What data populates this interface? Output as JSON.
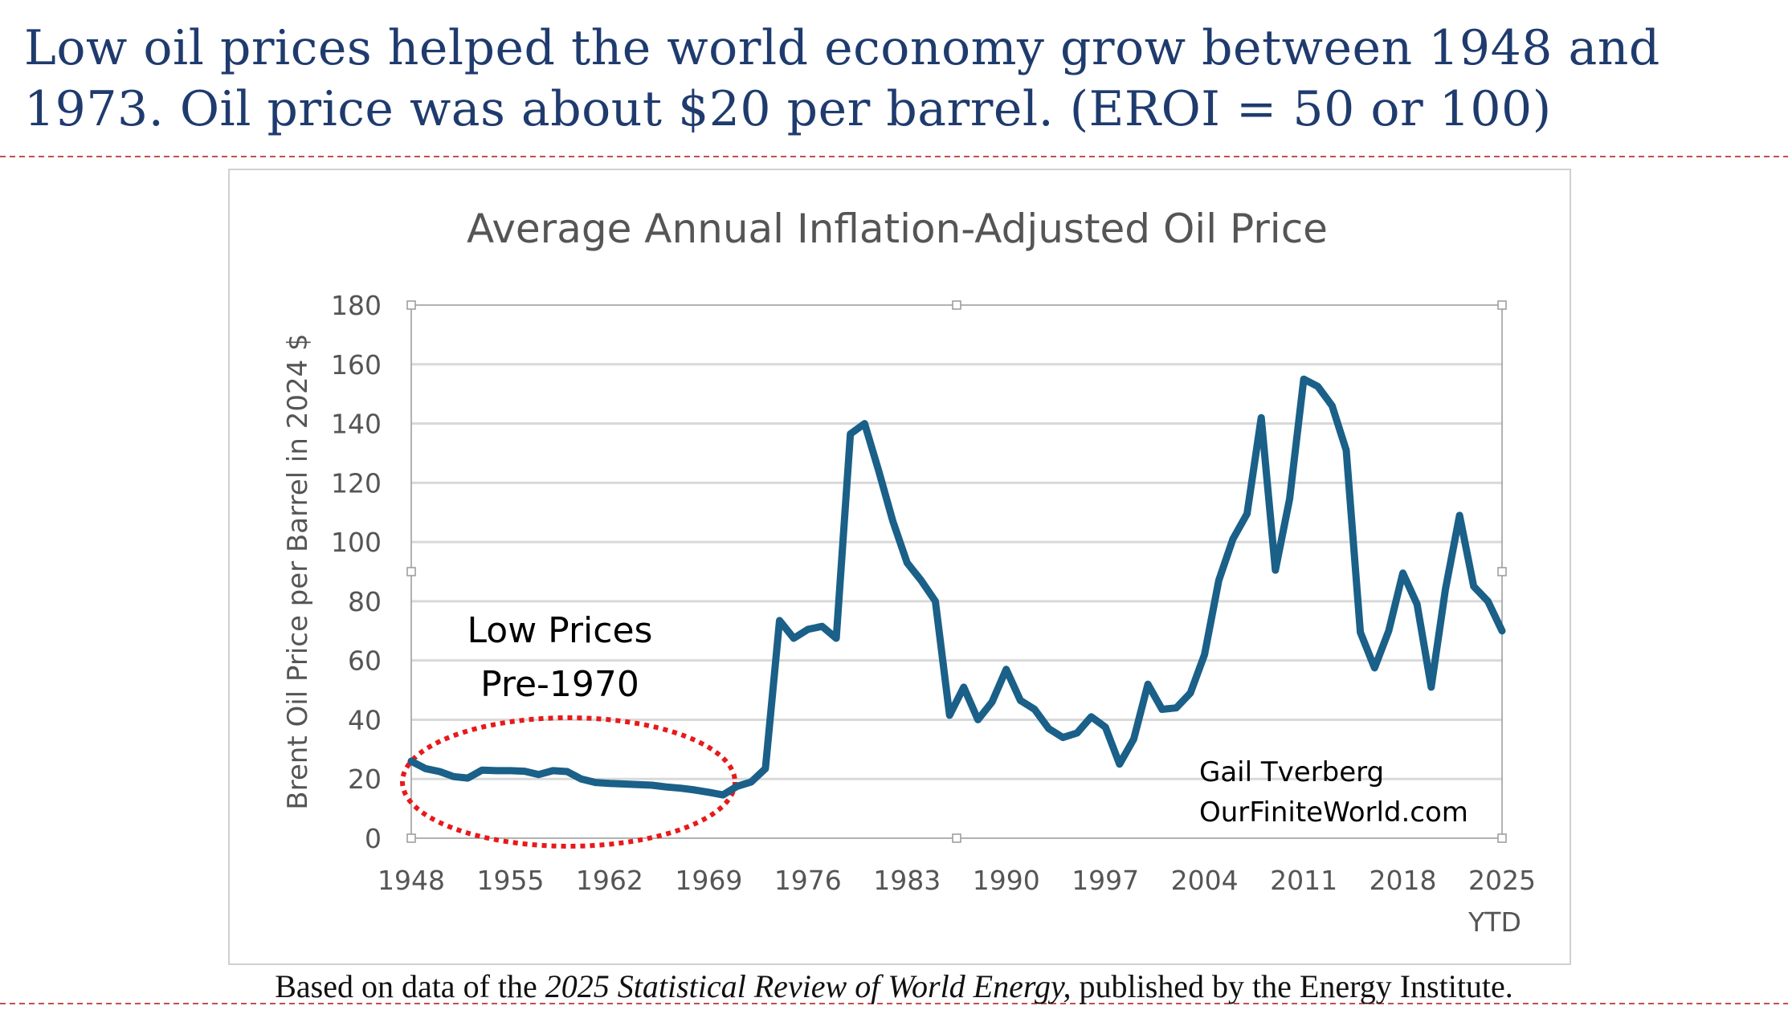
{
  "slide": {
    "title_line1": "Low oil prices helped the world economy grow between 1948 and",
    "title_line2": "1973. Oil price was about $20 per barrel. (EROI = 50 or 100)",
    "footer_pre": "Based on data of  the ",
    "footer_italic": "2025 Statistical Review of  World Energy,",
    "footer_post": " published by the Energy Institute.",
    "separator_color": "#c0504d"
  },
  "chart_data": {
    "type": "line",
    "title": "Average Annual Inflation-Adjusted Oil Price",
    "xlabel": "",
    "ylabel": "Brent Oil Price per Barrel in 2024 $",
    "ylim": [
      0,
      180
    ],
    "yticks": [
      0,
      20,
      40,
      60,
      80,
      100,
      120,
      140,
      160,
      180
    ],
    "xlim": [
      1948,
      2025
    ],
    "xticks": [
      "1948",
      "1955",
      "1962",
      "1969",
      "1976",
      "1983",
      "1990",
      "1997",
      "2004",
      "2011",
      "2018",
      "2025"
    ],
    "xtick_sub": "YTD",
    "grid": true,
    "line_color": "#1a6088",
    "x": [
      1948,
      1949,
      1950,
      1951,
      1952,
      1953,
      1954,
      1955,
      1956,
      1957,
      1958,
      1959,
      1960,
      1961,
      1962,
      1963,
      1964,
      1965,
      1966,
      1967,
      1968,
      1969,
      1970,
      1971,
      1972,
      1973,
      1974,
      1975,
      1976,
      1977,
      1978,
      1979,
      1980,
      1981,
      1982,
      1983,
      1984,
      1985,
      1986,
      1987,
      1988,
      1989,
      1990,
      1991,
      1992,
      1993,
      1994,
      1995,
      1996,
      1997,
      1998,
      1999,
      2000,
      2001,
      2002,
      2003,
      2004,
      2005,
      2006,
      2007,
      2008,
      2009,
      2010,
      2011,
      2012,
      2013,
      2014,
      2015,
      2016,
      2017,
      2018,
      2019,
      2020,
      2021,
      2022,
      2023,
      2024,
      2025
    ],
    "series": [
      {
        "name": "Brent Oil Price (2024 $)",
        "values": [
          26,
          23.5,
          22.5,
          20.8,
          20.3,
          23,
          22.8,
          22.8,
          22.6,
          21.5,
          22.8,
          22.5,
          20,
          18.8,
          18.5,
          18.3,
          18.1,
          17.9,
          17.3,
          16.9,
          16.3,
          15.5,
          14.6,
          17.5,
          19,
          23.5,
          73.5,
          67.5,
          70.5,
          71.5,
          67.5,
          136.5,
          140,
          124,
          107,
          93,
          87,
          80,
          41.5,
          51,
          40,
          46,
          57,
          46.5,
          43.5,
          37,
          34,
          35.5,
          41,
          37.5,
          25,
          33.5,
          52,
          43.5,
          44,
          49,
          62,
          87,
          101,
          109.5,
          142,
          90.5,
          114.5,
          155,
          152.5,
          146,
          131,
          69.5,
          57.5,
          70,
          89.5,
          79,
          51,
          84,
          109,
          85,
          80,
          70
        ]
      }
    ],
    "annotations": {
      "low_prices_line1": "Low Prices",
      "low_prices_line2": "Pre-1970",
      "author": "Gail Tverberg",
      "website": "OurFiniteWorld.com",
      "ellipse_color": "#e8191a"
    }
  }
}
